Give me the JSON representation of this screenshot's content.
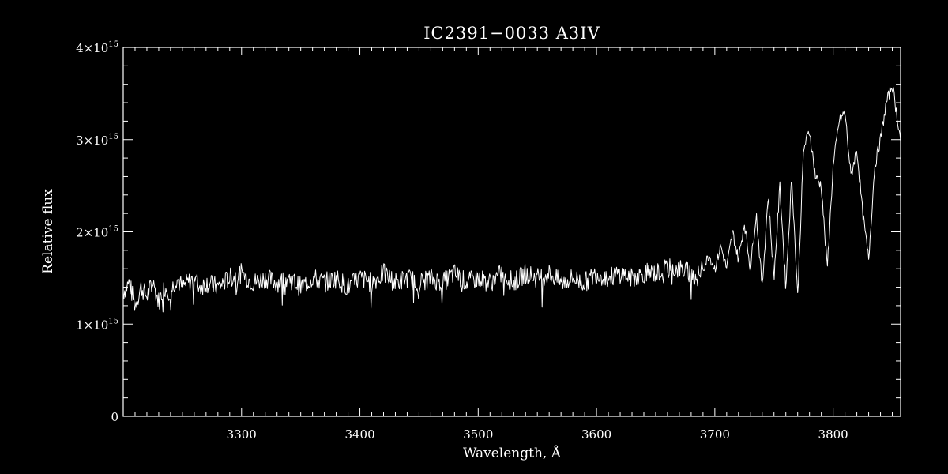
{
  "chart_data": {
    "type": "line",
    "title": "IC2391−0033   A3IV",
    "xlabel": "Wavelength, Å",
    "ylabel": "Relative flux",
    "xlim": [
      3200,
      3857
    ],
    "ylim": [
      0,
      4000000000000000.0
    ],
    "xticks": [
      3300,
      3400,
      3500,
      3600,
      3700,
      3800
    ],
    "xtick_labels": [
      "3300",
      "3400",
      "3500",
      "3600",
      "3700",
      "3800"
    ],
    "yticks": [
      0,
      1000000000000000.0,
      2000000000000000.0,
      3000000000000000.0,
      4000000000000000.0
    ],
    "ytick_labels": [
      {
        "mant": "0",
        "exp": ""
      },
      {
        "mant": "1×10",
        "exp": "15"
      },
      {
        "mant": "2×10",
        "exp": "15"
      },
      {
        "mant": "3×10",
        "exp": "15"
      },
      {
        "mant": "4×10",
        "exp": "15"
      }
    ],
    "grid": false,
    "line_color": "#ffffff",
    "background": "#000000",
    "series": [
      {
        "x": [
          3200,
          3205,
          3210,
          3215,
          3220,
          3225,
          3230,
          3235,
          3240,
          3245,
          3250,
          3255,
          3260,
          3265,
          3270,
          3280,
          3290,
          3300,
          3310,
          3320,
          3330,
          3340,
          3350,
          3360,
          3370,
          3380,
          3390,
          3400,
          3410,
          3420,
          3430,
          3440,
          3450,
          3460,
          3470,
          3480,
          3490,
          3500,
          3510,
          3520,
          3530,
          3540,
          3550,
          3560,
          3570,
          3580,
          3590,
          3600,
          3610,
          3620,
          3630,
          3640,
          3650,
          3660,
          3670,
          3680,
          3685,
          3690,
          3695,
          3700,
          3705,
          3710,
          3715,
          3720,
          3725,
          3730,
          3735,
          3740,
          3745,
          3750,
          3755,
          3760,
          3765,
          3770,
          3775,
          3780,
          3785,
          3790,
          3795,
          3800,
          3805,
          3810,
          3815,
          3820,
          3825,
          3830,
          3835,
          3840,
          3845,
          3850,
          3857
        ],
        "y": [
          1350000000000000.0,
          1450000000000000.0,
          1200000000000000.0,
          1400000000000000.0,
          1300000000000000.0,
          1450000000000000.0,
          1250000000000000.0,
          1400000000000000.0,
          1350000000000000.0,
          1500000000000000.0,
          1400000000000000.0,
          1450000000000000.0,
          1500000000000000.0,
          1400000000000000.0,
          1450000000000000.0,
          1400000000000000.0,
          1500000000000000.0,
          1550000000000000.0,
          1450000000000000.0,
          1500000000000000.0,
          1450000000000000.0,
          1500000000000000.0,
          1400000000000000.0,
          1500000000000000.0,
          1450000000000000.0,
          1500000000000000.0,
          1400000000000000.0,
          1500000000000000.0,
          1450000000000000.0,
          1550000000000000.0,
          1450000000000000.0,
          1500000000000000.0,
          1450000000000000.0,
          1500000000000000.0,
          1450000000000000.0,
          1550000000000000.0,
          1450000000000000.0,
          1500000000000000.0,
          1450000000000000.0,
          1550000000000000.0,
          1450000000000000.0,
          1550000000000000.0,
          1500000000000000.0,
          1550000000000000.0,
          1450000000000000.0,
          1500000000000000.0,
          1450000000000000.0,
          1550000000000000.0,
          1500000000000000.0,
          1550000000000000.0,
          1500000000000000.0,
          1550000000000000.0,
          1550000000000000.0,
          1600000000000000.0,
          1600000000000000.0,
          1550000000000000.0,
          1500000000000000.0,
          1600000000000000.0,
          1750000000000000.0,
          1600000000000000.0,
          1850000000000000.0,
          1600000000000000.0,
          2000000000000000.0,
          1700000000000000.0,
          2100000000000000.0,
          1600000000000000.0,
          2200000000000000.0,
          1400000000000000.0,
          2400000000000000.0,
          1500000000000000.0,
          2500000000000000.0,
          1400000000000000.0,
          2600000000000000.0,
          1300000000000000.0,
          2900000000000000.0,
          3100000000000000.0,
          2600000000000000.0,
          2500000000000000.0,
          1600000000000000.0,
          2700000000000000.0,
          3200000000000000.0,
          3300000000000000.0,
          2600000000000000.0,
          2900000000000000.0,
          2200000000000000.0,
          1700000000000000.0,
          2700000000000000.0,
          3000000000000000.0,
          3400000000000000.0,
          3600000000000000.0,
          3000000000000000.0
        ]
      }
    ]
  }
}
